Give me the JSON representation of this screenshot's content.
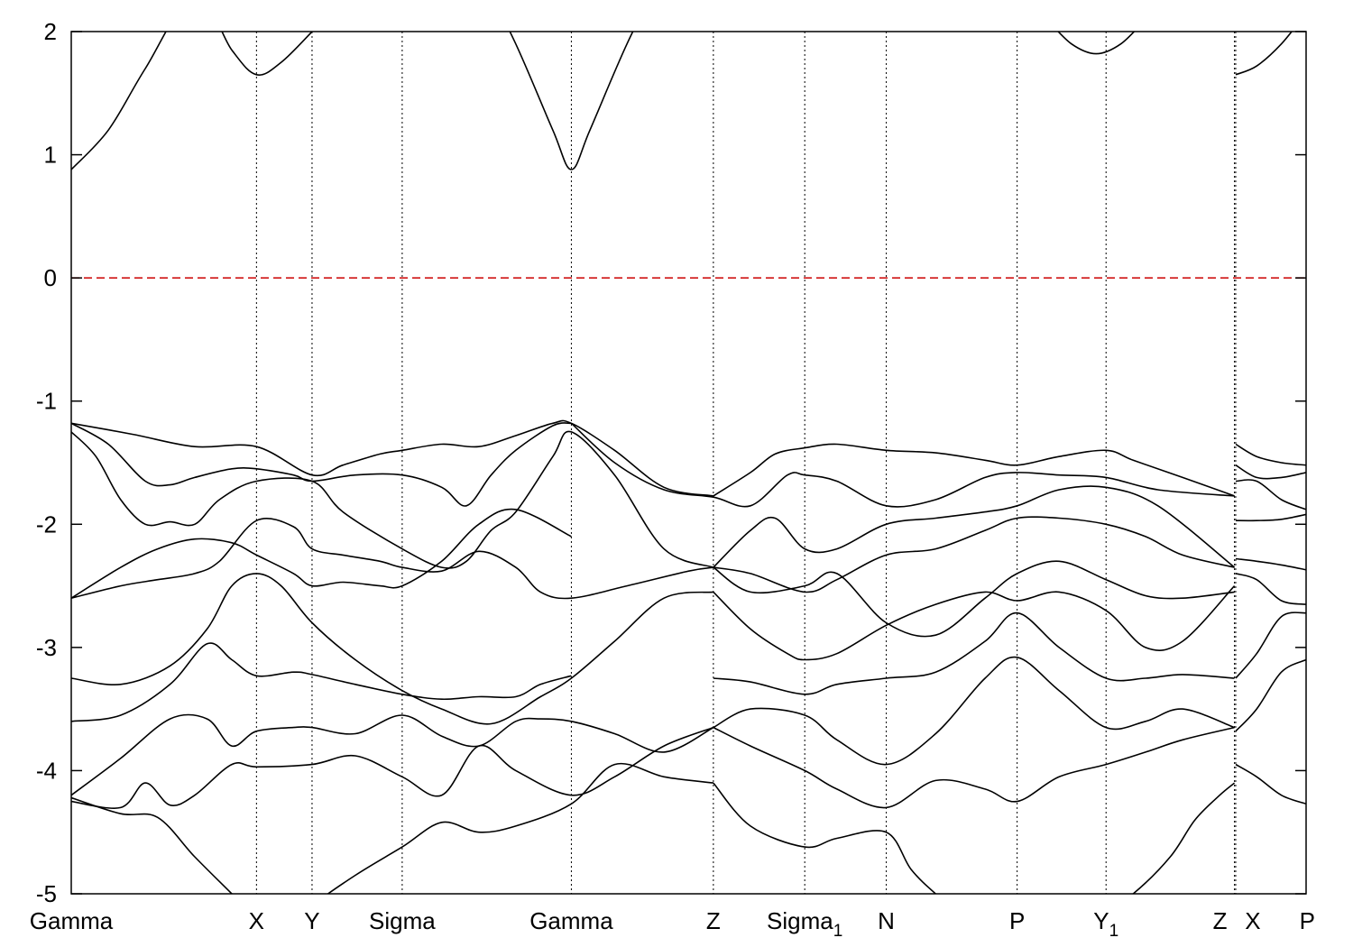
{
  "chart_data": {
    "type": "line",
    "ylim": [
      -5,
      2
    ],
    "yticks": [
      -5,
      -4,
      -3,
      -2,
      -1,
      0,
      1,
      2
    ],
    "grid": "vertical dotted lines at high-symmetry points",
    "fermi_level": {
      "value": 0,
      "color": "#cc0000",
      "style": "dashed"
    },
    "kpath": [
      {
        "label": "Gamma",
        "sub": "",
        "k": 0
      },
      {
        "label": "X",
        "sub": "",
        "k": 0.15
      },
      {
        "label": "Y",
        "sub": "",
        "k": 0.195
      },
      {
        "label": "Sigma",
        "sub": "",
        "k": 0.268
      },
      {
        "label": "Gamma",
        "sub": "",
        "k": 0.405
      },
      {
        "label": "Z",
        "sub": "",
        "k": 0.52
      },
      {
        "label": "Sigma",
        "sub": "1",
        "k": 0.594
      },
      {
        "label": "N",
        "sub": "",
        "k": 0.66
      },
      {
        "label": "P",
        "sub": "",
        "k": 0.766
      },
      {
        "label": "Y",
        "sub": "1",
        "k": 0.838
      },
      {
        "label": "Z",
        "sub": "",
        "k": 0.942
      },
      {
        "label": "X",
        "sub": "",
        "k": 0.943
      },
      {
        "label": "P",
        "sub": "",
        "k": 1.0
      }
    ],
    "line_color": "#000000",
    "series": [
      {
        "x": [
          0,
          0.03,
          0.06,
          0.1,
          0.13,
          0.15,
          0.17,
          0.195
        ],
        "y": [
          0.88,
          1.2,
          1.7,
          2.3,
          1.85,
          1.65,
          1.75,
          2.0
        ]
      },
      {
        "x": [
          0.33,
          0.36,
          0.39,
          0.405,
          0.42,
          0.45,
          0.48
        ],
        "y": [
          2.5,
          1.9,
          1.2,
          0.88,
          1.2,
          1.9,
          2.5
        ]
      },
      {
        "x": [
          0.79,
          0.81,
          0.83,
          0.85,
          0.87
        ],
        "y": [
          2.1,
          1.9,
          1.82,
          1.9,
          2.1
        ]
      },
      {
        "x": [
          0.943,
          0.96,
          0.98,
          1.0
        ],
        "y": [
          1.65,
          1.72,
          1.9,
          2.15
        ]
      },
      {
        "x": [
          0,
          0.05,
          0.1,
          0.15,
          0.195,
          0.22,
          0.25,
          0.268,
          0.3,
          0.33,
          0.36,
          0.39,
          0.405,
          0.44,
          0.48,
          0.52
        ],
        "y": [
          -1.18,
          -1.27,
          -1.37,
          -1.37,
          -1.6,
          -1.52,
          -1.43,
          -1.4,
          -1.35,
          -1.37,
          -1.28,
          -1.18,
          -1.18,
          -1.4,
          -1.7,
          -1.77
        ]
      },
      {
        "x": [
          0.52,
          0.55,
          0.57,
          0.594,
          0.62,
          0.66,
          0.7,
          0.74,
          0.766,
          0.8,
          0.838,
          0.86,
          0.9,
          0.942
        ],
        "y": [
          -1.77,
          -1.58,
          -1.43,
          -1.38,
          -1.35,
          -1.4,
          -1.42,
          -1.48,
          -1.52,
          -1.45,
          -1.4,
          -1.48,
          -1.62,
          -1.77
        ]
      },
      {
        "x": [
          0,
          0.03,
          0.06,
          0.08,
          0.1,
          0.13,
          0.15,
          0.18,
          0.195,
          0.23,
          0.268,
          0.3,
          0.32,
          0.34,
          0.36,
          0.39,
          0.405
        ],
        "y": [
          -1.18,
          -1.35,
          -1.65,
          -1.68,
          -1.62,
          -1.55,
          -1.55,
          -1.6,
          -1.65,
          -1.6,
          -1.6,
          -1.7,
          -1.85,
          -1.6,
          -1.4,
          -1.2,
          -1.18
        ]
      },
      {
        "x": [
          0.405,
          0.44,
          0.48,
          0.52,
          0.55,
          0.58,
          0.594,
          0.62,
          0.66,
          0.7,
          0.74,
          0.766,
          0.8,
          0.838,
          0.88,
          0.942
        ],
        "y": [
          -1.18,
          -1.5,
          -1.72,
          -1.78,
          -1.85,
          -1.6,
          -1.6,
          -1.65,
          -1.85,
          -1.8,
          -1.62,
          -1.58,
          -1.6,
          -1.62,
          -1.72,
          -1.77
        ]
      },
      {
        "x": [
          0,
          0.02,
          0.04,
          0.06,
          0.08,
          0.1,
          0.12,
          0.15,
          0.195,
          0.22,
          0.268,
          0.3,
          0.32,
          0.34,
          0.36,
          0.39,
          0.405,
          0.44,
          0.48,
          0.52
        ],
        "y": [
          -1.25,
          -1.45,
          -1.8,
          -2.0,
          -1.98,
          -2.0,
          -1.8,
          -1.65,
          -1.65,
          -1.9,
          -2.2,
          -2.35,
          -2.3,
          -2.05,
          -1.9,
          -1.45,
          -1.25,
          -1.6,
          -2.2,
          -2.35
        ]
      },
      {
        "x": [
          0.52,
          0.55,
          0.57,
          0.594,
          0.62,
          0.66,
          0.7,
          0.74,
          0.766,
          0.8,
          0.838,
          0.88,
          0.942
        ],
        "y": [
          -2.35,
          -2.05,
          -1.95,
          -2.2,
          -2.2,
          -2.0,
          -1.95,
          -1.9,
          -1.85,
          -1.72,
          -1.7,
          -1.85,
          -2.35
        ]
      },
      {
        "x": [
          0,
          0.04,
          0.07,
          0.1,
          0.13,
          0.15,
          0.18,
          0.195,
          0.22,
          0.25,
          0.268,
          0.3,
          0.33,
          0.36,
          0.405
        ],
        "y": [
          -2.6,
          -2.35,
          -2.2,
          -2.12,
          -2.15,
          -2.25,
          -2.4,
          -2.5,
          -2.47,
          -2.5,
          -2.5,
          -2.3,
          -2.0,
          -1.88,
          -2.1
        ]
      },
      {
        "x": [
          0,
          0.04,
          0.07,
          0.1,
          0.12,
          0.15,
          0.18,
          0.195,
          0.22,
          0.25,
          0.268,
          0.3,
          0.33,
          0.36,
          0.38,
          0.405,
          0.45,
          0.5,
          0.52
        ],
        "y": [
          -2.6,
          -2.5,
          -2.45,
          -2.4,
          -2.3,
          -1.97,
          -2.02,
          -2.2,
          -2.25,
          -2.3,
          -2.35,
          -2.38,
          -2.22,
          -2.35,
          -2.55,
          -2.6,
          -2.5,
          -2.38,
          -2.35
        ]
      },
      {
        "x": [
          0.52,
          0.55,
          0.594,
          0.62,
          0.66,
          0.7,
          0.74,
          0.766,
          0.8,
          0.838,
          0.87,
          0.9,
          0.942
        ],
        "y": [
          -2.35,
          -2.4,
          -2.55,
          -2.45,
          -2.25,
          -2.2,
          -2.05,
          -1.95,
          -1.95,
          -2.0,
          -2.1,
          -2.25,
          -2.35
        ]
      },
      {
        "x": [
          0.52,
          0.55,
          0.594,
          0.62,
          0.66,
          0.7,
          0.74,
          0.766,
          0.8,
          0.838,
          0.87,
          0.9,
          0.942
        ],
        "y": [
          -2.35,
          -2.55,
          -2.5,
          -2.4,
          -2.8,
          -2.9,
          -2.6,
          -2.4,
          -2.3,
          -2.45,
          -2.58,
          -2.6,
          -2.55
        ]
      },
      {
        "x": [
          0,
          0.04,
          0.08,
          0.11,
          0.13,
          0.15,
          0.17,
          0.195,
          0.23,
          0.268,
          0.3,
          0.34,
          0.38,
          0.405,
          0.44,
          0.48,
          0.52
        ],
        "y": [
          -3.25,
          -3.3,
          -3.15,
          -2.85,
          -2.5,
          -2.4,
          -2.5,
          -2.8,
          -3.1,
          -3.35,
          -3.5,
          -3.62,
          -3.4,
          -3.25,
          -2.95,
          -2.6,
          -2.55
        ]
      },
      {
        "x": [
          0.52,
          0.55,
          0.58,
          0.594,
          0.62,
          0.66,
          0.7,
          0.74,
          0.766,
          0.8,
          0.838,
          0.87,
          0.9,
          0.942
        ],
        "y": [
          -2.55,
          -2.85,
          -3.05,
          -3.1,
          -3.05,
          -2.82,
          -2.65,
          -2.55,
          -2.62,
          -2.55,
          -2.7,
          -3.0,
          -2.95,
          -2.5
        ]
      },
      {
        "x": [
          0,
          0.04,
          0.08,
          0.11,
          0.13,
          0.15,
          0.18,
          0.195,
          0.23,
          0.268,
          0.3,
          0.33,
          0.36,
          0.38,
          0.405
        ],
        "y": [
          -3.6,
          -3.55,
          -3.3,
          -2.97,
          -3.1,
          -3.23,
          -3.2,
          -3.22,
          -3.3,
          -3.38,
          -3.42,
          -3.4,
          -3.4,
          -3.3,
          -3.23
        ]
      },
      {
        "x": [
          0,
          0.04,
          0.08,
          0.11,
          0.13,
          0.15,
          0.18,
          0.195,
          0.23,
          0.268,
          0.3,
          0.33,
          0.36,
          0.38,
          0.405,
          0.44,
          0.48,
          0.52
        ],
        "y": [
          -4.2,
          -3.9,
          -3.58,
          -3.58,
          -3.8,
          -3.68,
          -3.65,
          -3.65,
          -3.7,
          -3.55,
          -3.72,
          -3.8,
          -3.6,
          -3.58,
          -3.6,
          -3.7,
          -3.85,
          -3.65
        ]
      },
      {
        "x": [
          0.52,
          0.55,
          0.594,
          0.62,
          0.66,
          0.7,
          0.74,
          0.766,
          0.8,
          0.838,
          0.87,
          0.9,
          0.942
        ],
        "y": [
          -3.25,
          -3.28,
          -3.38,
          -3.3,
          -3.25,
          -3.2,
          -2.95,
          -2.72,
          -3.0,
          -3.25,
          -3.25,
          -3.22,
          -3.25
        ]
      },
      {
        "x": [
          0.52,
          0.55,
          0.594,
          0.62,
          0.66,
          0.7,
          0.74,
          0.766,
          0.8,
          0.838,
          0.87,
          0.9,
          0.942
        ],
        "y": [
          -3.65,
          -3.5,
          -3.55,
          -3.75,
          -3.95,
          -3.7,
          -3.25,
          -3.08,
          -3.35,
          -3.65,
          -3.6,
          -3.5,
          -3.65
        ]
      },
      {
        "x": [
          0,
          0.04,
          0.06,
          0.08,
          0.1,
          0.13,
          0.15,
          0.195,
          0.23,
          0.268,
          0.3,
          0.33,
          0.36,
          0.405,
          0.44,
          0.48,
          0.52
        ],
        "y": [
          -4.25,
          -4.3,
          -4.1,
          -4.28,
          -4.2,
          -3.95,
          -3.97,
          -3.95,
          -3.88,
          -4.05,
          -4.2,
          -3.8,
          -4.0,
          -4.2,
          -4.05,
          -3.8,
          -3.65
        ]
      },
      {
        "x": [
          0.52,
          0.55,
          0.594,
          0.62,
          0.66,
          0.7,
          0.74,
          0.766,
          0.8,
          0.838,
          0.87,
          0.9,
          0.942
        ],
        "y": [
          -3.65,
          -3.8,
          -4.0,
          -4.15,
          -4.3,
          -4.08,
          -4.15,
          -4.25,
          -4.05,
          -3.95,
          -3.85,
          -3.75,
          -3.65
        ]
      },
      {
        "x": [
          0,
          0.04,
          0.07,
          0.1,
          0.13,
          0.15,
          0.18,
          0.195,
          0.23,
          0.268,
          0.3,
          0.33,
          0.36,
          0.405,
          0.44,
          0.48,
          0.52
        ],
        "y": [
          -4.22,
          -4.35,
          -4.38,
          -4.7,
          -5.0,
          -5.2,
          -5.3,
          -5.1,
          -4.85,
          -4.62,
          -4.42,
          -4.5,
          -4.45,
          -4.27,
          -3.95,
          -4.05,
          -4.1
        ]
      },
      {
        "x": [
          0.52,
          0.55,
          0.594,
          0.62,
          0.66,
          0.68,
          0.7,
          0.72,
          0.75
        ],
        "y": [
          -4.1,
          -4.45,
          -4.62,
          -4.55,
          -4.5,
          -4.8,
          -5.0,
          -5.15,
          -5.3
        ]
      },
      {
        "x": [
          0.83,
          0.86,
          0.89,
          0.91,
          0.93,
          0.942
        ],
        "y": [
          -5.2,
          -5.0,
          -4.7,
          -4.4,
          -4.2,
          -4.1
        ]
      },
      {
        "x": [
          0.943,
          0.96,
          0.98,
          1.0
        ],
        "y": [
          -1.35,
          -1.45,
          -1.5,
          -1.52
        ]
      },
      {
        "x": [
          0.943,
          0.96,
          0.98,
          1.0
        ],
        "y": [
          -1.52,
          -1.62,
          -1.62,
          -1.58
        ]
      },
      {
        "x": [
          0.943,
          0.96,
          0.98,
          1.0
        ],
        "y": [
          -1.65,
          -1.65,
          -1.8,
          -1.88
        ]
      },
      {
        "x": [
          0.943,
          0.96,
          0.98,
          1.0
        ],
        "y": [
          -1.97,
          -1.97,
          -1.96,
          -1.92
        ]
      },
      {
        "x": [
          0.943,
          0.96,
          0.98,
          1.0
        ],
        "y": [
          -2.28,
          -2.3,
          -2.33,
          -2.37
        ]
      },
      {
        "x": [
          0.943,
          0.96,
          0.98,
          1.0
        ],
        "y": [
          -2.4,
          -2.45,
          -2.62,
          -2.65
        ]
      },
      {
        "x": [
          0.943,
          0.96,
          0.98,
          1.0
        ],
        "y": [
          -3.25,
          -3.05,
          -2.75,
          -2.72
        ]
      },
      {
        "x": [
          0.943,
          0.96,
          0.98,
          1.0
        ],
        "y": [
          -3.68,
          -3.5,
          -3.2,
          -3.1
        ]
      },
      {
        "x": [
          0.943,
          0.96,
          0.98,
          1.0
        ],
        "y": [
          -3.95,
          -4.05,
          -4.2,
          -4.27
        ]
      }
    ]
  }
}
